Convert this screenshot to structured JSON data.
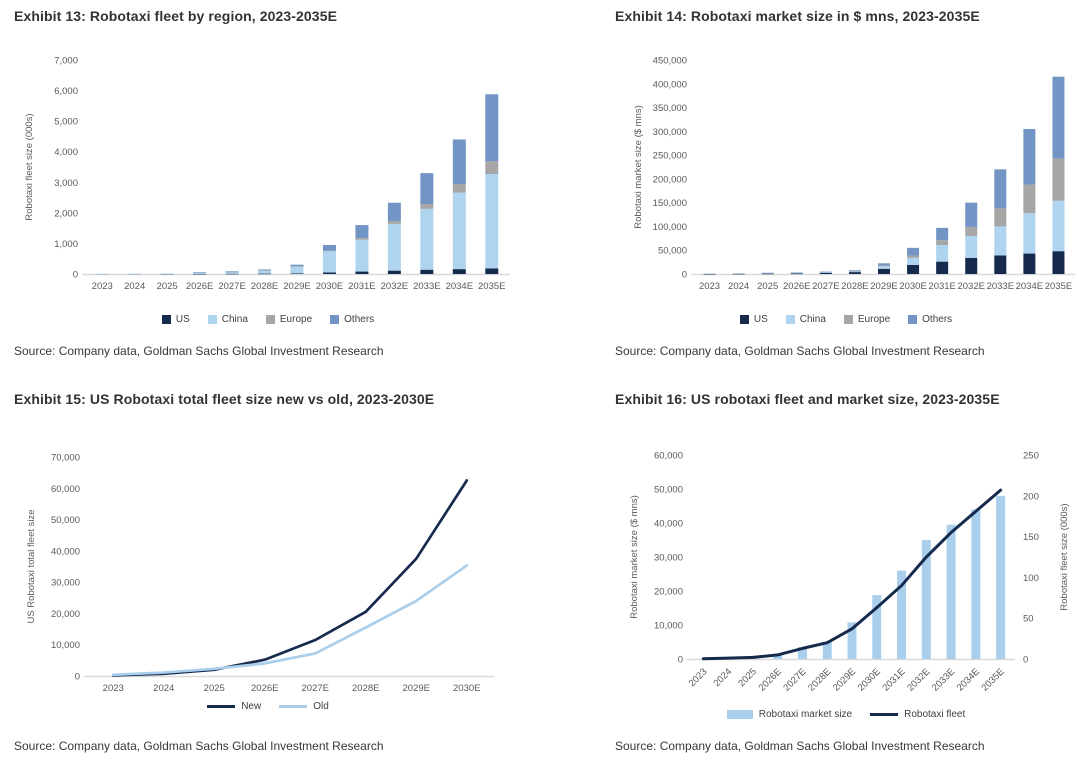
{
  "page": {
    "background": "#ffffff"
  },
  "colors": {
    "us_navy": "#162A4E",
    "china_light_blue": "#AFD4F0",
    "europe_gray": "#A6A6A6",
    "others_steel_blue": "#7295C5",
    "old_light_blue": "#A9CFEC",
    "axis_line": "#D9D9D9",
    "tick_text": "#595959",
    "title_text": "#333333"
  },
  "chart_data": [
    {
      "type": "stacked-bar",
      "title": "Exhibit 13: Robotaxi fleet by region, 2023-2035E",
      "source": "Source: Company data, Goldman Sachs Global Investment Research",
      "ylabel": "Robotaxi fleet size (000s)",
      "ylim": [
        0,
        7000
      ],
      "ytick_step": 1000,
      "grid": false,
      "legend_position": "bottom",
      "categories": [
        "2023",
        "2024",
        "2025",
        "2026E",
        "2027E",
        "2028E",
        "2029E",
        "2030E",
        "2031E",
        "2032E",
        "2033E",
        "2034E",
        "2035E"
      ],
      "series": [
        {
          "name": "US",
          "color": "#162A4E",
          "values": [
            1,
            2,
            4,
            6,
            9,
            13,
            20,
            50,
            80,
            110,
            140,
            160,
            180
          ]
        },
        {
          "name": "China",
          "color": "#AFD4F0",
          "values": [
            1,
            3,
            8,
            44,
            64,
            110,
            235,
            700,
            1040,
            1530,
            1990,
            2500,
            3090
          ]
        },
        {
          "name": "Europe",
          "color": "#A6A6A6",
          "values": [
            0,
            0,
            0,
            0,
            2,
            3,
            5,
            20,
            60,
            90,
            160,
            280,
            420
          ]
        },
        {
          "name": "Others",
          "color": "#7295C5",
          "values": [
            0,
            0,
            0,
            10,
            15,
            24,
            45,
            180,
            420,
            600,
            1010,
            1460,
            2190
          ]
        }
      ]
    },
    {
      "type": "stacked-bar",
      "title": "Exhibit 14: Robotaxi market size in $ mns, 2023-2035E",
      "source": "Source: Company data, Goldman Sachs Global Investment Research",
      "ylabel": "Robotaxi market size ($ mns)",
      "ylim": [
        0,
        450000
      ],
      "ytick_step": 50000,
      "grid": false,
      "legend_position": "bottom",
      "categories": [
        "2023",
        "2024",
        "2025",
        "2026E",
        "2027E",
        "2028E",
        "2029E",
        "2030E",
        "2031E",
        "2032E",
        "2033E",
        "2034E",
        "2035E"
      ],
      "series": [
        {
          "name": "US",
          "color": "#162A4E",
          "values": [
            300,
            500,
            800,
            1000,
            2500,
            4000,
            11000,
            19000,
            26000,
            34000,
            39000,
            43000,
            48000
          ]
        },
        {
          "name": "China",
          "color": "#AFD4F0",
          "values": [
            1000,
            1300,
            1500,
            1500,
            1500,
            2000,
            5500,
            15000,
            35000,
            46000,
            61000,
            85000,
            106000
          ]
        },
        {
          "name": "Europe",
          "color": "#A6A6A6",
          "values": [
            0,
            0,
            0,
            0,
            0,
            500,
            1500,
            5000,
            10000,
            19000,
            38000,
            60000,
            89000
          ]
        },
        {
          "name": "Others",
          "color": "#7295C5",
          "values": [
            0,
            0,
            200,
            500,
            1000,
            1500,
            4500,
            16000,
            26000,
            51000,
            82000,
            117000,
            172000
          ]
        }
      ]
    },
    {
      "type": "line",
      "title": "Exhibit 15: US Robotaxi total fleet size new vs old, 2023-2030E",
      "source": "Source: Company data, Goldman Sachs Global Investment Research",
      "ylabel": "US Robotaxi total fleet size",
      "ylim": [
        0,
        70000
      ],
      "ytick_step": 10000,
      "grid": false,
      "legend_position": "bottom",
      "categories": [
        "2023",
        "2024",
        "2025",
        "2026E",
        "2027E",
        "2028E",
        "2029E",
        "2030E"
      ],
      "series": [
        {
          "name": "New",
          "color": "#162A4E",
          "values": [
            200,
            700,
            2000,
            5200,
            11500,
            20500,
            37500,
            62500
          ]
        },
        {
          "name": "Old",
          "color": "#A9CFEC",
          "values": [
            400,
            1100,
            2300,
            4000,
            7200,
            15500,
            24000,
            35300
          ]
        }
      ]
    },
    {
      "type": "combo",
      "title": "Exhibit 16: US robotaxi fleet and market size, 2023-2035E",
      "source": "Source: Company data, Goldman Sachs Global Investment Research",
      "ylabel_left": "Robotaxi market size ($ mns)",
      "ylabel_right": "Robotaxi fleet size (000s)",
      "ylim_left": [
        0,
        60000
      ],
      "ytick_step_left": 10000,
      "ylim_right": [
        0,
        250
      ],
      "ytick_step_right": 50,
      "grid": false,
      "legend_position": "bottom",
      "categories": [
        "2023",
        "2024",
        "2025",
        "2026E",
        "2027E",
        "2028E",
        "2029E",
        "2030E",
        "2031E",
        "2032E",
        "2033E",
        "2034E",
        "2035E"
      ],
      "series": [
        {
          "name": "Robotaxi market size",
          "kind": "bar",
          "axis": "left",
          "color": "#A9CFEC",
          "values": [
            100,
            300,
            600,
            1300,
            3500,
            5000,
            10800,
            18800,
            26000,
            35000,
            39500,
            44000,
            48000
          ]
        },
        {
          "name": "Robotaxi fleet",
          "kind": "line",
          "axis": "right",
          "color": "#162A4E",
          "values": [
            0.3,
            1,
            2,
            5,
            13,
            20,
            37,
            63,
            90,
            125,
            155,
            181,
            207
          ]
        }
      ]
    }
  ]
}
